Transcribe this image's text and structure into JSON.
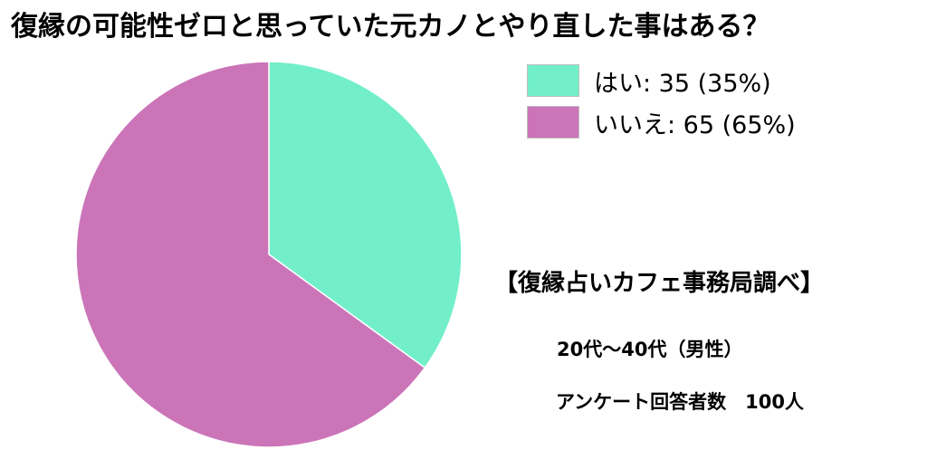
{
  "title": "復縁の可能性ゼロと思っていた元カノとやり直した事はある？",
  "chart_data": {
    "type": "pie",
    "categories": [
      "はい",
      "いいえ"
    ],
    "values": [
      35,
      65
    ],
    "percentages": [
      35,
      65
    ],
    "colors": [
      "#72efc9",
      "#cb75b8"
    ],
    "legend_labels": [
      "はい: 35 (35%)",
      "いいえ: 65 (65%)"
    ],
    "legend_placement": "top-right"
  },
  "source": "【復縁占いカフェ事務局調べ】",
  "demographic": "20代〜40代（男性）",
  "respondents": "アンケート回答者数　100人"
}
